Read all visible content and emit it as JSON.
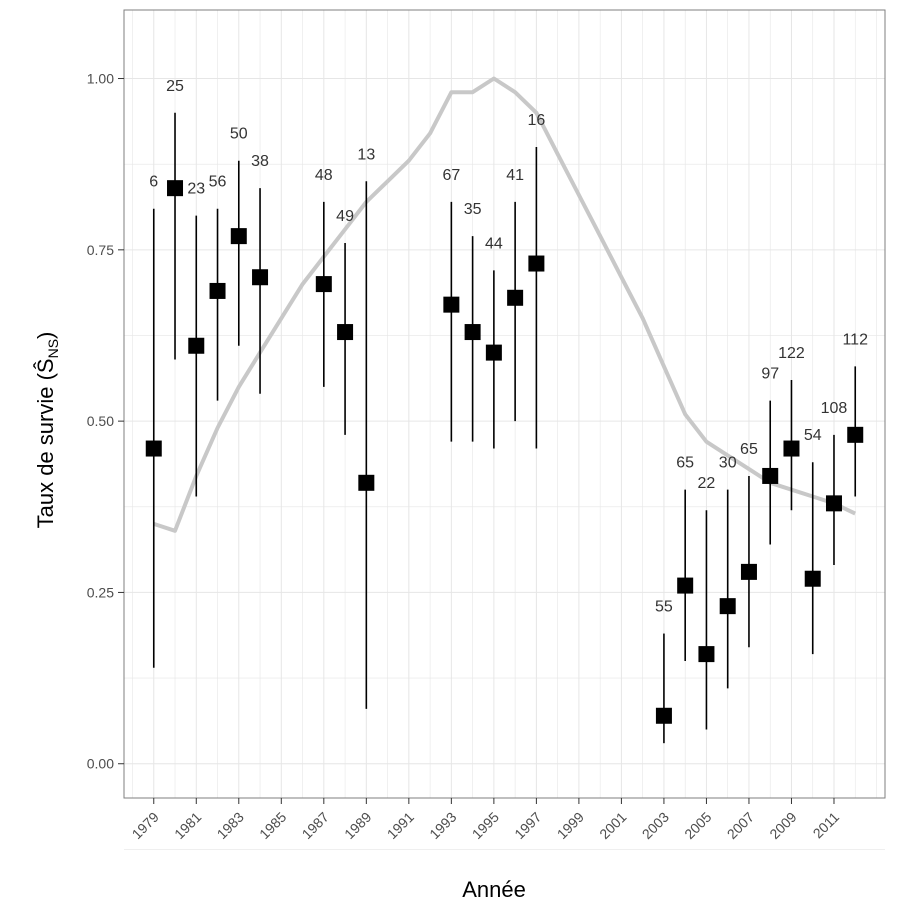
{
  "chart_data": {
    "type": "scatter",
    "xlabel": "Année",
    "ylabel": "Taux de survie (Ŝ",
    "ylabel_sub": "NS",
    "ylabel_close": ")",
    "xlim": [
      1977.6,
      2013.4
    ],
    "ylim": [
      -0.05,
      1.1
    ],
    "xticks": [
      1979,
      1981,
      1983,
      1985,
      1987,
      1989,
      1991,
      1993,
      1995,
      1997,
      1999,
      2001,
      2003,
      2005,
      2007,
      2009,
      2011
    ],
    "xtick_labels": [
      "1979",
      "1981",
      "1983",
      "1985",
      "1987",
      "1989",
      "1991",
      "1993",
      "1995",
      "1997",
      "1999",
      "2001",
      "2003",
      "2005",
      "2007",
      "2009",
      "2011"
    ],
    "yticks": [
      0,
      0.25,
      0.5,
      0.75,
      1.0
    ],
    "ytick_labels": [
      "0.00",
      "0.25",
      "0.50",
      "0.75",
      "1.00"
    ],
    "grid": true,
    "points": [
      {
        "x": 1979,
        "y": 0.46,
        "lo": 0.14,
        "hi": 0.81,
        "n": "6"
      },
      {
        "x": 1980,
        "y": 0.84,
        "lo": 0.59,
        "hi": 0.95,
        "n": "25"
      },
      {
        "x": 1981,
        "y": 0.61,
        "lo": 0.39,
        "hi": 0.8,
        "n": "23"
      },
      {
        "x": 1982,
        "y": 0.69,
        "lo": 0.53,
        "hi": 0.81,
        "n": "56"
      },
      {
        "x": 1983,
        "y": 0.77,
        "lo": 0.61,
        "hi": 0.88,
        "n": "50"
      },
      {
        "x": 1984,
        "y": 0.71,
        "lo": 0.54,
        "hi": 0.84,
        "n": "38"
      },
      {
        "x": 1987,
        "y": 0.7,
        "lo": 0.55,
        "hi": 0.82,
        "n": "48"
      },
      {
        "x": 1988,
        "y": 0.63,
        "lo": 0.48,
        "hi": 0.76,
        "n": "49"
      },
      {
        "x": 1989,
        "y": 0.41,
        "lo": 0.08,
        "hi": 0.85,
        "n": "13"
      },
      {
        "x": 1993,
        "y": 0.67,
        "lo": 0.47,
        "hi": 0.82,
        "n": "67"
      },
      {
        "x": 1994,
        "y": 0.63,
        "lo": 0.47,
        "hi": 0.77,
        "n": "35"
      },
      {
        "x": 1995,
        "y": 0.6,
        "lo": 0.46,
        "hi": 0.72,
        "n": "44"
      },
      {
        "x": 1996,
        "y": 0.68,
        "lo": 0.5,
        "hi": 0.82,
        "n": "41"
      },
      {
        "x": 1997,
        "y": 0.73,
        "lo": 0.46,
        "hi": 0.9,
        "n": "16"
      },
      {
        "x": 2003,
        "y": 0.07,
        "lo": 0.03,
        "hi": 0.19,
        "n": "55"
      },
      {
        "x": 2004,
        "y": 0.26,
        "lo": 0.15,
        "hi": 0.4,
        "n": "65"
      },
      {
        "x": 2005,
        "y": 0.16,
        "lo": 0.05,
        "hi": 0.37,
        "n": "22"
      },
      {
        "x": 2006,
        "y": 0.23,
        "lo": 0.11,
        "hi": 0.4,
        "n": "30"
      },
      {
        "x": 2007,
        "y": 0.28,
        "lo": 0.17,
        "hi": 0.42,
        "n": "65"
      },
      {
        "x": 2008,
        "y": 0.42,
        "lo": 0.32,
        "hi": 0.53,
        "n": "97"
      },
      {
        "x": 2009,
        "y": 0.46,
        "lo": 0.37,
        "hi": 0.56,
        "n": "122"
      },
      {
        "x": 2010,
        "y": 0.27,
        "lo": 0.16,
        "hi": 0.44,
        "n": "54"
      },
      {
        "x": 2011,
        "y": 0.38,
        "lo": 0.29,
        "hi": 0.48,
        "n": "108"
      },
      {
        "x": 2012,
        "y": 0.48,
        "lo": 0.39,
        "hi": 0.58,
        "n": "112"
      }
    ],
    "trend_line": {
      "x": [
        1979,
        1980,
        1981,
        1982,
        1983,
        1984,
        1985,
        1986,
        1987,
        1988,
        1989,
        1990,
        1991,
        1992,
        1993,
        1994,
        1995,
        1996,
        1997,
        1998,
        1999,
        2000,
        2001,
        2002,
        2003,
        2004,
        2005,
        2006,
        2007,
        2008,
        2009,
        2010,
        2011,
        2012
      ],
      "y": [
        0.35,
        0.34,
        0.42,
        0.49,
        0.55,
        0.6,
        0.65,
        0.7,
        0.74,
        0.78,
        0.82,
        0.85,
        0.88,
        0.92,
        0.98,
        0.98,
        1.0,
        0.98,
        0.95,
        0.89,
        0.83,
        0.77,
        0.71,
        0.65,
        0.58,
        0.51,
        0.47,
        0.45,
        0.43,
        0.41,
        0.4,
        0.39,
        0.38,
        0.365
      ]
    },
    "colors": {
      "point": "#000000",
      "errorbar": "#000000",
      "trend": "#c8c8c8",
      "grid": "#e6e6e6",
      "panel_border": "#7f7f7f"
    }
  }
}
